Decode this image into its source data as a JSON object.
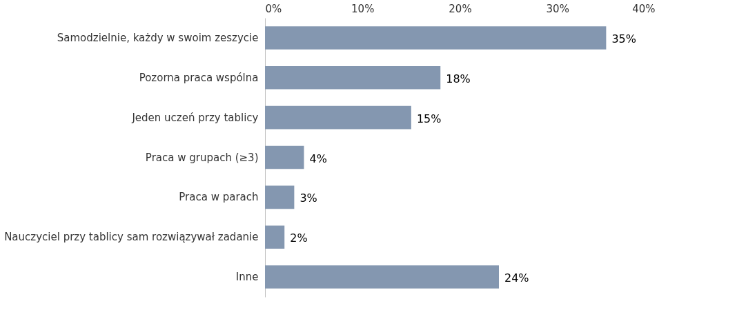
{
  "chart_data": {
    "type": "bar",
    "orientation": "horizontal",
    "categories": [
      "Samodzielnie, każdy w swoim zeszycie",
      "Pozorna praca wspólna",
      "Jeden uczeń przy tablicy",
      "Praca w grupach (≥3)",
      "Praca w parach",
      "Nauczyciel przy tablicy sam rozwiązywał zadanie",
      "Inne"
    ],
    "values": [
      35,
      18,
      15,
      4,
      3,
      2,
      24
    ],
    "color": "#8497b0",
    "xlim": [
      0,
      40
    ],
    "xticks": [
      {
        "value": 0,
        "label": "0%"
      },
      {
        "value": 10,
        "label": "10%"
      },
      {
        "value": 20,
        "label": "20%"
      },
      {
        "value": 30,
        "label": "30%"
      },
      {
        "value": 40,
        "label": "40%"
      }
    ],
    "value_labels": [
      "35%",
      "18%",
      "15%",
      "4%",
      "3%",
      "2%",
      "24%"
    ]
  }
}
